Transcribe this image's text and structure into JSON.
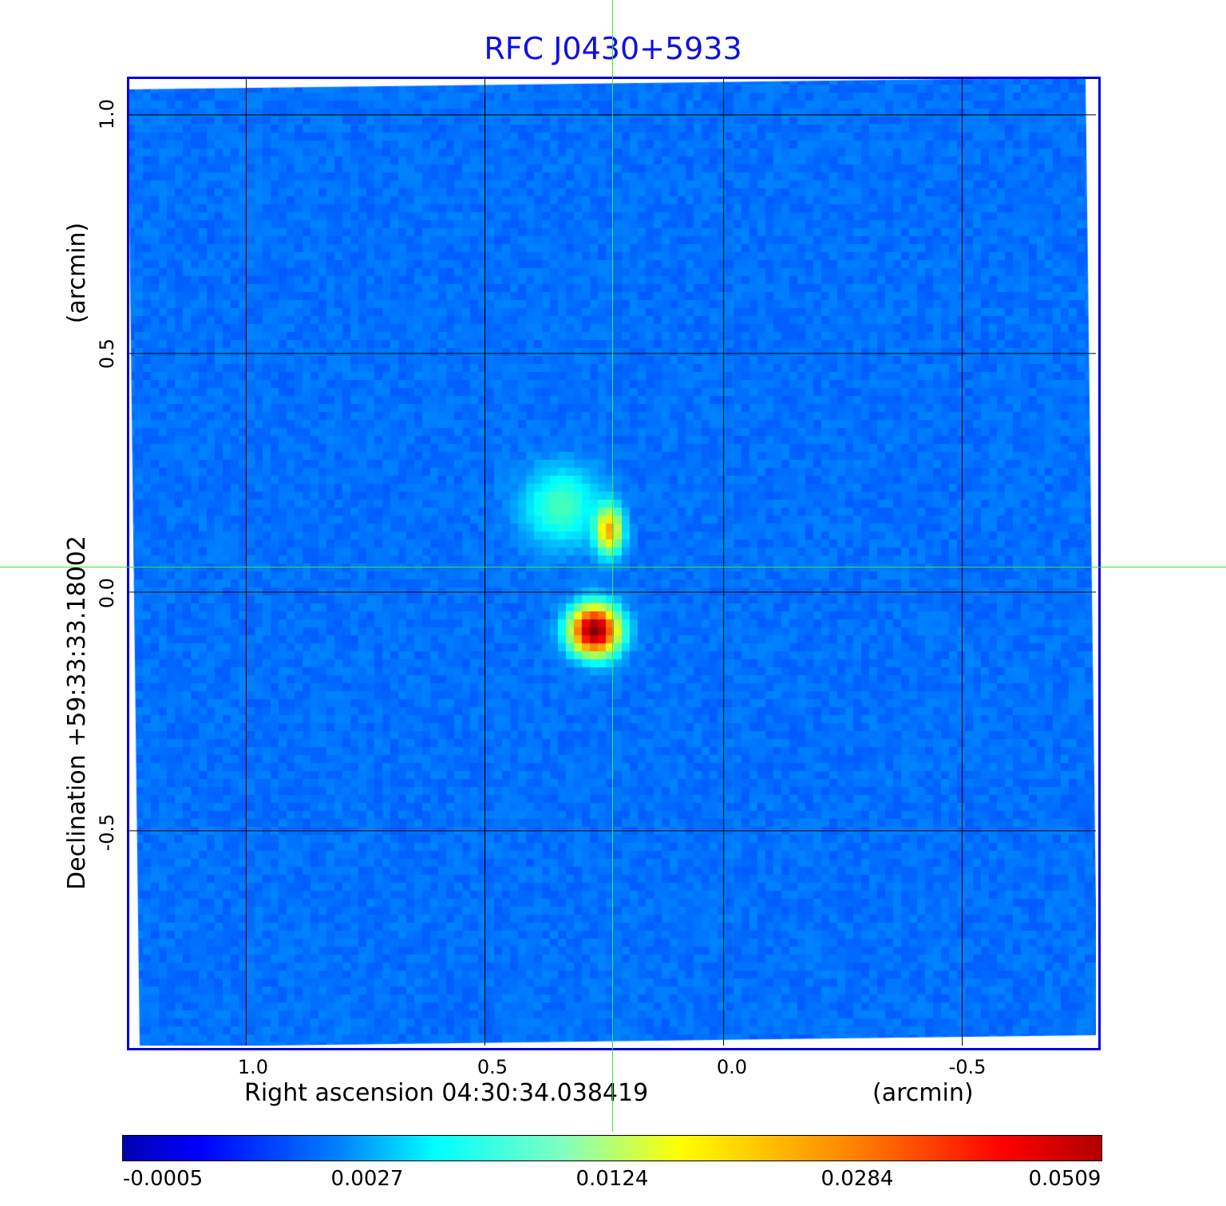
{
  "chart_data": {
    "type": "heatmap",
    "title": "RFC J0430+5933",
    "xlabel": "Right ascension  04:30:34.038419",
    "xunit": "(arcmin)",
    "ylabel": "Declination  +59:33:33.18002",
    "yunit": "(arcmin)",
    "x_ticks": [
      "1.0",
      "0.5",
      "0.0",
      "-0.5"
    ],
    "y_ticks": [
      "1.0",
      "0.5",
      "0.0",
      "-0.5"
    ],
    "xlim": [
      1.25,
      -0.78
    ],
    "ylim": [
      -0.95,
      1.08
    ],
    "grid": true,
    "colormap": "jet",
    "colorbar_ticks": [
      "-0.0005",
      "0.0027",
      "0.0124",
      "0.0284",
      "0.0509"
    ],
    "colorbar_range": [
      -0.0005,
      0.0509
    ],
    "sources": [
      {
        "name": "",
        "x_arcmin": 0.27,
        "y_arcmin": -0.08,
        "peak": 0.0509
      },
      {
        "name": "",
        "x_arcmin": 0.24,
        "y_arcmin": 0.13,
        "peak": 0.022
      },
      {
        "name": "",
        "x_arcmin": 0.34,
        "y_arcmin": 0.18,
        "peak": 0.006
      }
    ],
    "crosshair_color": "#40e040"
  }
}
